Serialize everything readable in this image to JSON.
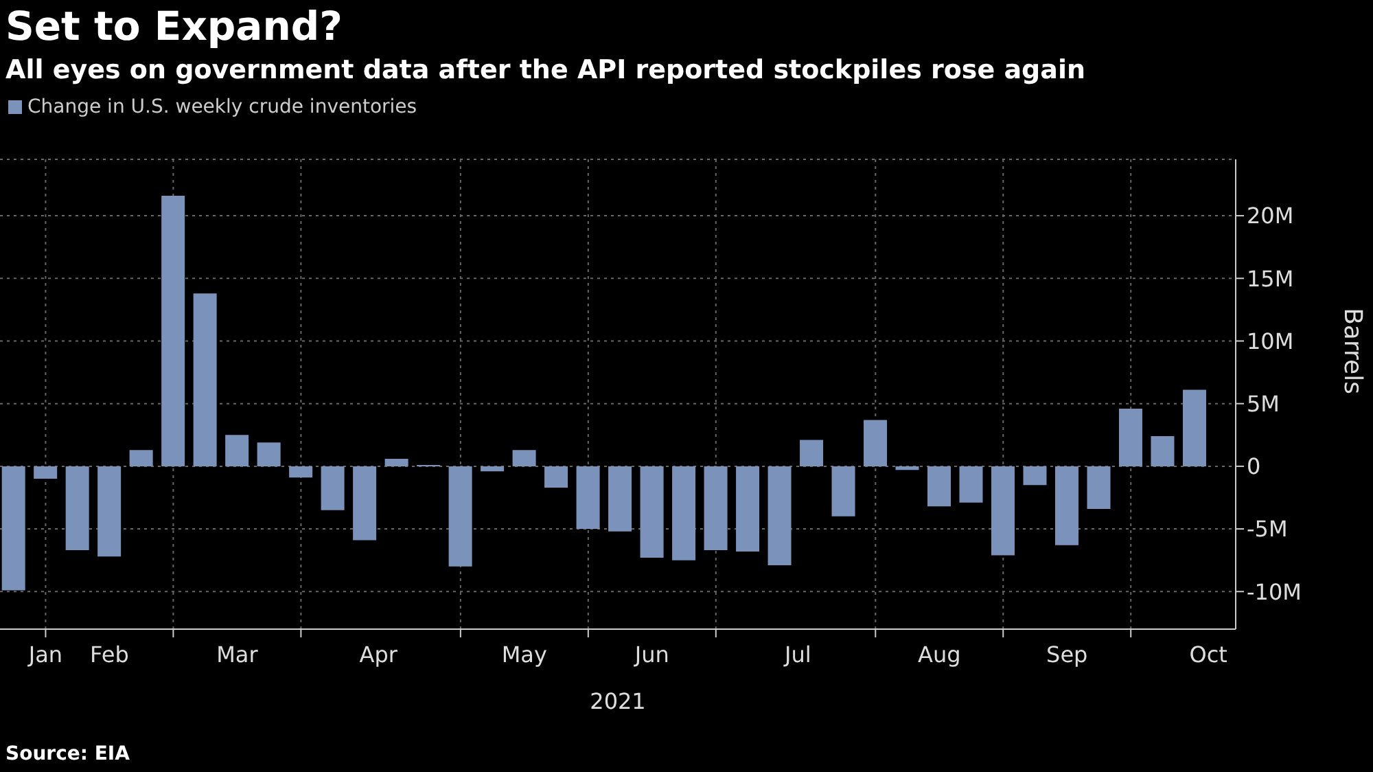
{
  "chart_data": {
    "type": "bar",
    "title": "Set to Expand?",
    "subtitle": "All eyes on government data after the API reported stockpiles rose again",
    "x": [
      "2021-01-15",
      "2021-01-22",
      "2021-01-29",
      "2021-02-05",
      "2021-02-12",
      "2021-02-19",
      "2021-02-26",
      "2021-03-05",
      "2021-03-12",
      "2021-03-19",
      "2021-03-26",
      "2021-04-02",
      "2021-04-09",
      "2021-04-16",
      "2021-04-23",
      "2021-04-30",
      "2021-05-07",
      "2021-05-14",
      "2021-05-21",
      "2021-05-28",
      "2021-06-04",
      "2021-06-11",
      "2021-06-18",
      "2021-06-25",
      "2021-07-02",
      "2021-07-09",
      "2021-07-16",
      "2021-07-23",
      "2021-07-30",
      "2021-08-06",
      "2021-08-13",
      "2021-08-20",
      "2021-08-27",
      "2021-09-03",
      "2021-09-10",
      "2021-09-17",
      "2021-09-24",
      "2021-10-01"
    ],
    "series": [
      {
        "name": "Change in U.S. weekly crude inventories",
        "color": "#7b93bb",
        "values": [
          -9.9,
          -1.0,
          -6.7,
          -7.2,
          1.3,
          21.6,
          13.8,
          2.5,
          1.9,
          -0.9,
          -3.5,
          -5.9,
          0.6,
          0.1,
          -8.0,
          -0.4,
          1.3,
          -1.7,
          -5.0,
          -5.2,
          -7.3,
          -7.5,
          -6.7,
          -6.8,
          -7.9,
          2.1,
          -4.0,
          3.7,
          -0.3,
          -3.2,
          -2.9,
          -7.1,
          -1.5,
          -6.3,
          -3.4,
          4.6,
          2.4,
          6.1
        ]
      }
    ],
    "xlim": [
      "2021-01-12",
      "2021-10-10"
    ],
    "xticks": [
      {
        "value": "2021-01-22",
        "label": "Jan"
      },
      {
        "value": "2021-02-05",
        "label": "Feb"
      },
      {
        "value": "2021-03-05",
        "label": "Mar"
      },
      {
        "value": "2021-04-05",
        "label": "Apr"
      },
      {
        "value": "2021-05-07",
        "label": "May"
      },
      {
        "value": "2021-06-04",
        "label": "Jun"
      },
      {
        "value": "2021-07-06",
        "label": "Jul"
      },
      {
        "value": "2021-08-06",
        "label": "Aug"
      },
      {
        "value": "2021-09-03",
        "label": "Sep"
      },
      {
        "value": "2021-10-04",
        "label": "Oct"
      },
      {
        "value": "2021-01-22",
        "label": null
      },
      {
        "value": "2021-02-19",
        "label": null
      },
      {
        "value": "2021-03-19",
        "label": null
      },
      {
        "value": "2021-04-23",
        "label": null
      },
      {
        "value": "2021-05-21",
        "label": null
      },
      {
        "value": "2021-06-18",
        "label": null
      },
      {
        "value": "2021-07-23",
        "label": null
      },
      {
        "value": "2021-08-20",
        "label": null
      },
      {
        "value": "2021-09-17",
        "label": null
      }
    ],
    "xlabel": "2021",
    "ylabel": "Barrels",
    "ylim": [
      -13,
      24.5
    ],
    "yticks": [
      {
        "value": -10,
        "label": "-10M"
      },
      {
        "value": -5,
        "label": "-5M"
      },
      {
        "value": 0,
        "label": "0"
      },
      {
        "value": 5,
        "label": "5M"
      },
      {
        "value": 10,
        "label": "10M"
      },
      {
        "value": 15,
        "label": "15M"
      },
      {
        "value": 20,
        "label": "20M"
      }
    ],
    "grid": true,
    "legend": "top left",
    "annotations": [
      "Source: EIA"
    ]
  }
}
